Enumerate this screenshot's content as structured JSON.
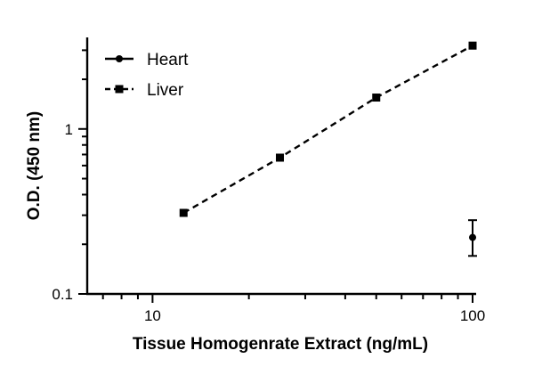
{
  "chart_data": {
    "type": "scatter",
    "title": "",
    "xlabel": "Tissue Homogenrate Extract (ng/mL)",
    "ylabel": "O.D. (450 nm)",
    "xscale": "log",
    "yscale": "log",
    "xlim": [
      6.25,
      100
    ],
    "ylim": [
      0.1,
      3.5
    ],
    "x_tick_labels": [
      "10",
      "100"
    ],
    "y_tick_labels": [
      "0.1",
      "1"
    ],
    "grid": false,
    "legend_position": "top-left",
    "series": [
      {
        "name": "Heart",
        "line": "solid",
        "marker": "circle",
        "points": [
          {
            "x": 100,
            "y": 0.22,
            "err_low": 0.17,
            "err_high": 0.28
          }
        ]
      },
      {
        "name": "Liver",
        "line": "dashed",
        "marker": "square",
        "points": [
          {
            "x": 12.5,
            "y": 0.31
          },
          {
            "x": 25,
            "y": 0.67
          },
          {
            "x": 50,
            "y": 1.55
          },
          {
            "x": 100,
            "y": 3.2
          }
        ]
      }
    ]
  }
}
